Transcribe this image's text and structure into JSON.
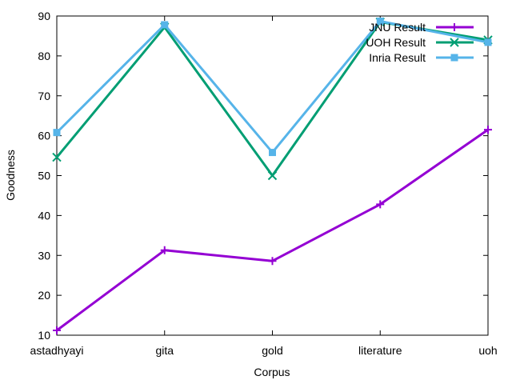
{
  "chart_data": {
    "type": "line",
    "xlabel": "Corpus",
    "ylabel": "Goodness",
    "categories": [
      "astadhyayi",
      "gita",
      "gold",
      "literature",
      "uoh"
    ],
    "ylim": [
      10,
      90
    ],
    "yticks": [
      10,
      20,
      30,
      40,
      50,
      60,
      70,
      80,
      90
    ],
    "grid": false,
    "legend_position": "top-right",
    "series": [
      {
        "name": "JNU Result",
        "values": [
          11.2,
          31.3,
          28.6,
          42.8,
          61.5
        ],
        "color": "#9400d3",
        "marker": "plus"
      },
      {
        "name": "UOH Result",
        "values": [
          54.6,
          87.2,
          50.0,
          88.5,
          84.0
        ],
        "color": "#009e73",
        "marker": "x"
      },
      {
        "name": "Inria Result",
        "values": [
          60.8,
          87.8,
          55.8,
          88.7,
          83.4
        ],
        "color": "#56b4e9",
        "marker": "square"
      }
    ]
  }
}
